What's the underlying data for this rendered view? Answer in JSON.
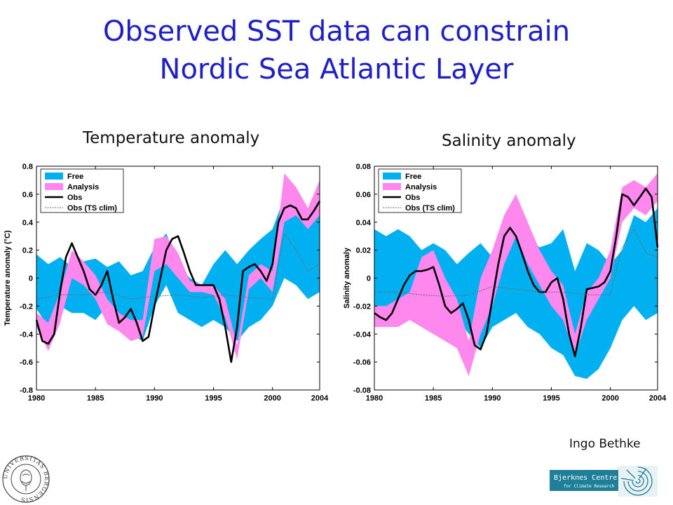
{
  "slide": {
    "title_line1": "Observed SST data can constrain",
    "title_line2": "Nordic Sea Atlantic Layer",
    "author": "Ingo Bethke"
  },
  "logos": {
    "university": "UNIVERSITAS BERGENSIS",
    "bjerknes_line1": "Bjerknes Centre",
    "bjerknes_line2": "for Climate Research"
  },
  "colors": {
    "free": "#00b0f0",
    "analysis": "#ff88ee",
    "obs": "#000000",
    "obs_ts_clim": "#6a6a6a"
  },
  "chart_data": [
    {
      "type": "line",
      "panel_title": "Temperature anomaly",
      "xlabel": "",
      "ylabel": "Temperature anomaly (°C)",
      "xlim": [
        1980,
        2004
      ],
      "ylim": [
        -0.8,
        0.8
      ],
      "xticks": [
        1980,
        1985,
        1990,
        1995,
        2000,
        2004
      ],
      "yticks": [
        -0.8,
        -0.6,
        -0.4,
        -0.2,
        0,
        0.2,
        0.4,
        0.6,
        0.8
      ],
      "ytick_labels": [
        "-0.8",
        "-0.6",
        "-0.4",
        "-0.2",
        "0",
        "0.2",
        "0.4",
        "0.6",
        "0.8"
      ],
      "legend": [
        "Free",
        "Analysis",
        "Obs",
        "Obs (TS clim)"
      ],
      "legend_position": "top-left",
      "grid": false,
      "bands": [
        {
          "name": "Free",
          "x": [
            1980,
            1981,
            1982,
            1983,
            1984,
            1985,
            1986,
            1987,
            1988,
            1989,
            1990,
            1991,
            1992,
            1993,
            1994,
            1995,
            1996,
            1997,
            1998,
            1999,
            2000,
            2001,
            2002,
            2003,
            2004
          ],
          "upper": [
            0.17,
            0.1,
            0.15,
            0.08,
            0.12,
            0.14,
            0.08,
            0.12,
            0.02,
            0.05,
            0.22,
            0.32,
            0.1,
            0.0,
            -0.05,
            0.1,
            0.2,
            0.1,
            0.2,
            0.28,
            0.35,
            0.58,
            0.48,
            0.4,
            0.45
          ],
          "lower": [
            -0.22,
            -0.35,
            -0.2,
            -0.25,
            -0.25,
            -0.3,
            -0.2,
            -0.35,
            -0.4,
            -0.45,
            -0.2,
            -0.05,
            -0.25,
            -0.3,
            -0.35,
            -0.3,
            -0.35,
            -0.45,
            -0.35,
            -0.3,
            -0.2,
            0.0,
            -0.05,
            -0.15,
            -0.1
          ]
        },
        {
          "name": "Analysis",
          "x": [
            1980,
            1981,
            1982,
            1983,
            1984,
            1985,
            1986,
            1987,
            1988,
            1989,
            1990,
            1991,
            1992,
            1993,
            1994,
            1995,
            1996,
            1997,
            1998,
            1999,
            2000,
            2001,
            2002,
            2003,
            2004
          ],
          "upper": [
            -0.25,
            -0.32,
            -0.1,
            0.2,
            0.12,
            0.02,
            -0.15,
            -0.25,
            -0.3,
            -0.3,
            0.28,
            0.3,
            0.18,
            -0.02,
            -0.05,
            -0.05,
            -0.15,
            -0.48,
            0.02,
            0.1,
            0.05,
            0.75,
            0.65,
            0.5,
            0.7
          ],
          "lower": [
            -0.35,
            -0.52,
            -0.32,
            0.0,
            -0.05,
            -0.15,
            -0.33,
            -0.38,
            -0.45,
            -0.42,
            0.05,
            0.1,
            0.0,
            -0.1,
            -0.1,
            -0.12,
            -0.28,
            -0.58,
            -0.08,
            0.0,
            -0.1,
            0.4,
            0.45,
            0.35,
            0.45
          ]
        }
      ],
      "series": [
        {
          "name": "Obs",
          "x": [
            1980,
            1980.5,
            1981,
            1981.5,
            1982,
            1982.5,
            1983,
            1983.5,
            1984,
            1984.5,
            1985,
            1985.5,
            1986,
            1986.5,
            1987,
            1987.5,
            1988,
            1988.5,
            1989,
            1989.5,
            1990,
            1990.5,
            1991,
            1991.5,
            1992,
            1992.5,
            1993,
            1993.5,
            1994,
            1994.5,
            1995,
            1995.5,
            1996,
            1996.5,
            1997,
            1997.5,
            1998,
            1998.5,
            1999,
            1999.5,
            2000,
            2000.5,
            2001,
            2001.5,
            2002,
            2002.5,
            2003,
            2003.5,
            2004
          ],
          "values": [
            -0.3,
            -0.45,
            -0.47,
            -0.4,
            -0.1,
            0.15,
            0.25,
            0.15,
            0.05,
            -0.08,
            -0.12,
            -0.05,
            0.05,
            -0.15,
            -0.32,
            -0.28,
            -0.22,
            -0.32,
            -0.45,
            -0.42,
            -0.2,
            0.0,
            0.2,
            0.28,
            0.3,
            0.18,
            0.05,
            -0.05,
            -0.05,
            -0.05,
            -0.05,
            -0.15,
            -0.35,
            -0.6,
            -0.35,
            0.05,
            0.08,
            0.1,
            0.05,
            -0.02,
            0.1,
            0.4,
            0.5,
            0.52,
            0.5,
            0.42,
            0.42,
            0.48,
            0.55
          ]
        },
        {
          "name": "Obs (TS clim)",
          "x": [
            1980,
            1982,
            1984,
            1986,
            1988,
            1990,
            1992,
            1994,
            1996,
            1998,
            2000,
            2001,
            2002,
            2003,
            2004
          ],
          "values": [
            -0.15,
            -0.12,
            -0.12,
            -0.1,
            -0.15,
            -0.13,
            -0.12,
            -0.14,
            -0.12,
            -0.14,
            -0.15,
            0.32,
            0.2,
            0.05,
            0.1
          ]
        }
      ]
    },
    {
      "type": "line",
      "panel_title": "Salinity anomaly",
      "xlabel": "",
      "ylabel": "Salinity anomaly",
      "xlim": [
        1980,
        2004
      ],
      "ylim": [
        -0.08,
        0.08
      ],
      "xticks": [
        1980,
        1985,
        1990,
        1995,
        2000,
        2004
      ],
      "yticks": [
        -0.08,
        -0.06,
        -0.04,
        -0.02,
        0,
        0.02,
        0.04,
        0.06,
        0.08
      ],
      "ytick_labels": [
        "-0.08",
        "-0.06",
        "-0.04",
        "-0.02",
        "0",
        "0.02",
        "0.04",
        "0.06",
        "0.08"
      ],
      "legend": [
        "Free",
        "Analysis",
        "Obs",
        "Obs (TS clim)"
      ],
      "legend_position": "top-left",
      "grid": false,
      "bands": [
        {
          "name": "Free",
          "x": [
            1980,
            1981,
            1982,
            1983,
            1984,
            1985,
            1986,
            1987,
            1988,
            1989,
            1990,
            1991,
            1992,
            1993,
            1994,
            1995,
            1996,
            1997,
            1998,
            1999,
            2000,
            2001,
            2002,
            2003,
            2004
          ],
          "upper": [
            0.035,
            0.03,
            0.035,
            0.03,
            0.02,
            0.025,
            0.02,
            0.01,
            0.018,
            0.025,
            0.015,
            0.025,
            0.035,
            0.03,
            0.022,
            0.025,
            0.035,
            0.005,
            0.025,
            0.02,
            0.01,
            0.02,
            0.045,
            0.04,
            0.05
          ],
          "lower": [
            -0.02,
            -0.025,
            -0.02,
            -0.02,
            -0.03,
            -0.02,
            -0.03,
            -0.028,
            -0.04,
            -0.05,
            -0.035,
            -0.03,
            -0.025,
            -0.035,
            -0.04,
            -0.05,
            -0.055,
            -0.07,
            -0.072,
            -0.065,
            -0.05,
            -0.03,
            -0.02,
            -0.03,
            -0.025
          ]
        },
        {
          "name": "Analysis",
          "x": [
            1980,
            1981,
            1982,
            1983,
            1984,
            1985,
            1986,
            1987,
            1988,
            1989,
            1990,
            1991,
            1992,
            1993,
            1994,
            1995,
            1996,
            1997,
            1998,
            1999,
            2000,
            2001,
            2002,
            2003,
            2004
          ],
          "upper": [
            -0.02,
            -0.02,
            -0.015,
            -0.01,
            0.015,
            0.02,
            0.0,
            -0.015,
            -0.045,
            0.0,
            0.02,
            0.045,
            0.06,
            0.04,
            0.02,
            0.005,
            -0.005,
            -0.04,
            -0.01,
            0.0,
            0.02,
            0.065,
            0.07,
            0.065,
            0.075
          ],
          "lower": [
            -0.035,
            -0.035,
            -0.035,
            -0.03,
            -0.035,
            -0.04,
            -0.045,
            -0.05,
            -0.07,
            -0.04,
            -0.02,
            0.01,
            0.03,
            0.01,
            -0.005,
            -0.02,
            -0.03,
            -0.055,
            -0.03,
            -0.015,
            0.0,
            0.04,
            0.05,
            0.045,
            0.055
          ]
        }
      ],
      "series": [
        {
          "name": "Obs",
          "x": [
            1980,
            1980.5,
            1981,
            1981.5,
            1982,
            1982.5,
            1983,
            1983.5,
            1984,
            1984.5,
            1985,
            1985.5,
            1986,
            1986.5,
            1987,
            1987.5,
            1988,
            1988.5,
            1989,
            1989.5,
            1990,
            1990.5,
            1991,
            1991.5,
            1992,
            1992.5,
            1993,
            1993.5,
            1994,
            1994.5,
            1995,
            1995.5,
            1996,
            1996.5,
            1997,
            1997.5,
            1998,
            1998.5,
            1999,
            1999.5,
            2000,
            2000.5,
            2001,
            2001.5,
            2002,
            2002.5,
            2003,
            2003.5,
            2004
          ],
          "values": [
            -0.025,
            -0.028,
            -0.03,
            -0.025,
            -0.015,
            -0.005,
            0.002,
            0.005,
            0.005,
            0.006,
            0.008,
            -0.005,
            -0.02,
            -0.025,
            -0.022,
            -0.018,
            -0.03,
            -0.048,
            -0.051,
            -0.04,
            -0.015,
            0.01,
            0.03,
            0.036,
            0.03,
            0.018,
            0.005,
            -0.005,
            -0.01,
            -0.01,
            -0.003,
            0.0,
            -0.015,
            -0.04,
            -0.056,
            -0.035,
            -0.008,
            -0.007,
            -0.006,
            -0.003,
            0.005,
            0.03,
            0.06,
            0.058,
            0.052,
            0.058,
            0.064,
            0.058,
            0.022
          ]
        },
        {
          "name": "Obs (TS clim)",
          "x": [
            1980,
            1982,
            1984,
            1986,
            1988,
            1990,
            1992,
            1994,
            1996,
            1998,
            2000,
            2001,
            2002,
            2003,
            2004
          ],
          "values": [
            -0.01,
            -0.01,
            -0.012,
            -0.013,
            -0.012,
            -0.006,
            -0.008,
            -0.01,
            -0.01,
            -0.012,
            -0.012,
            0.022,
            0.035,
            0.018,
            0.015
          ]
        }
      ]
    }
  ]
}
